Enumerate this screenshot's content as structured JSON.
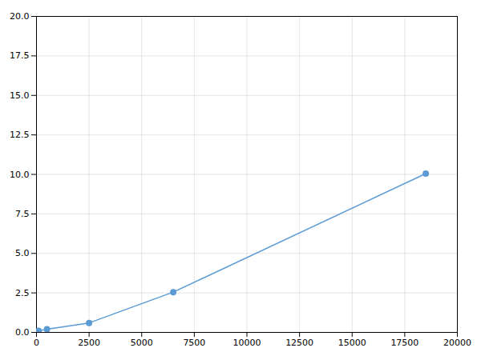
{
  "chart_data": {
    "type": "line",
    "x": [
      100,
      500,
      2500,
      6500,
      18500
    ],
    "values": [
      0.1,
      0.2,
      0.6,
      2.55,
      10.05
    ],
    "color": "#5b9bd5",
    "marker": "circle",
    "xlim": [
      0,
      20000
    ],
    "ylim": [
      0,
      20
    ],
    "xticks": [
      0,
      2500,
      5000,
      7500,
      10000,
      12500,
      15000,
      17500,
      20000
    ],
    "yticks": [
      {
        "value": 0,
        "label": "0.0"
      },
      2.5,
      {
        "value": 5,
        "label": "5.0"
      },
      7.5,
      {
        "value": 10,
        "label": "10.0"
      },
      12.5,
      {
        "value": 15,
        "label": "15.0"
      },
      17.5,
      {
        "value": 20,
        "label": "20.0"
      }
    ],
    "grid": true
  }
}
